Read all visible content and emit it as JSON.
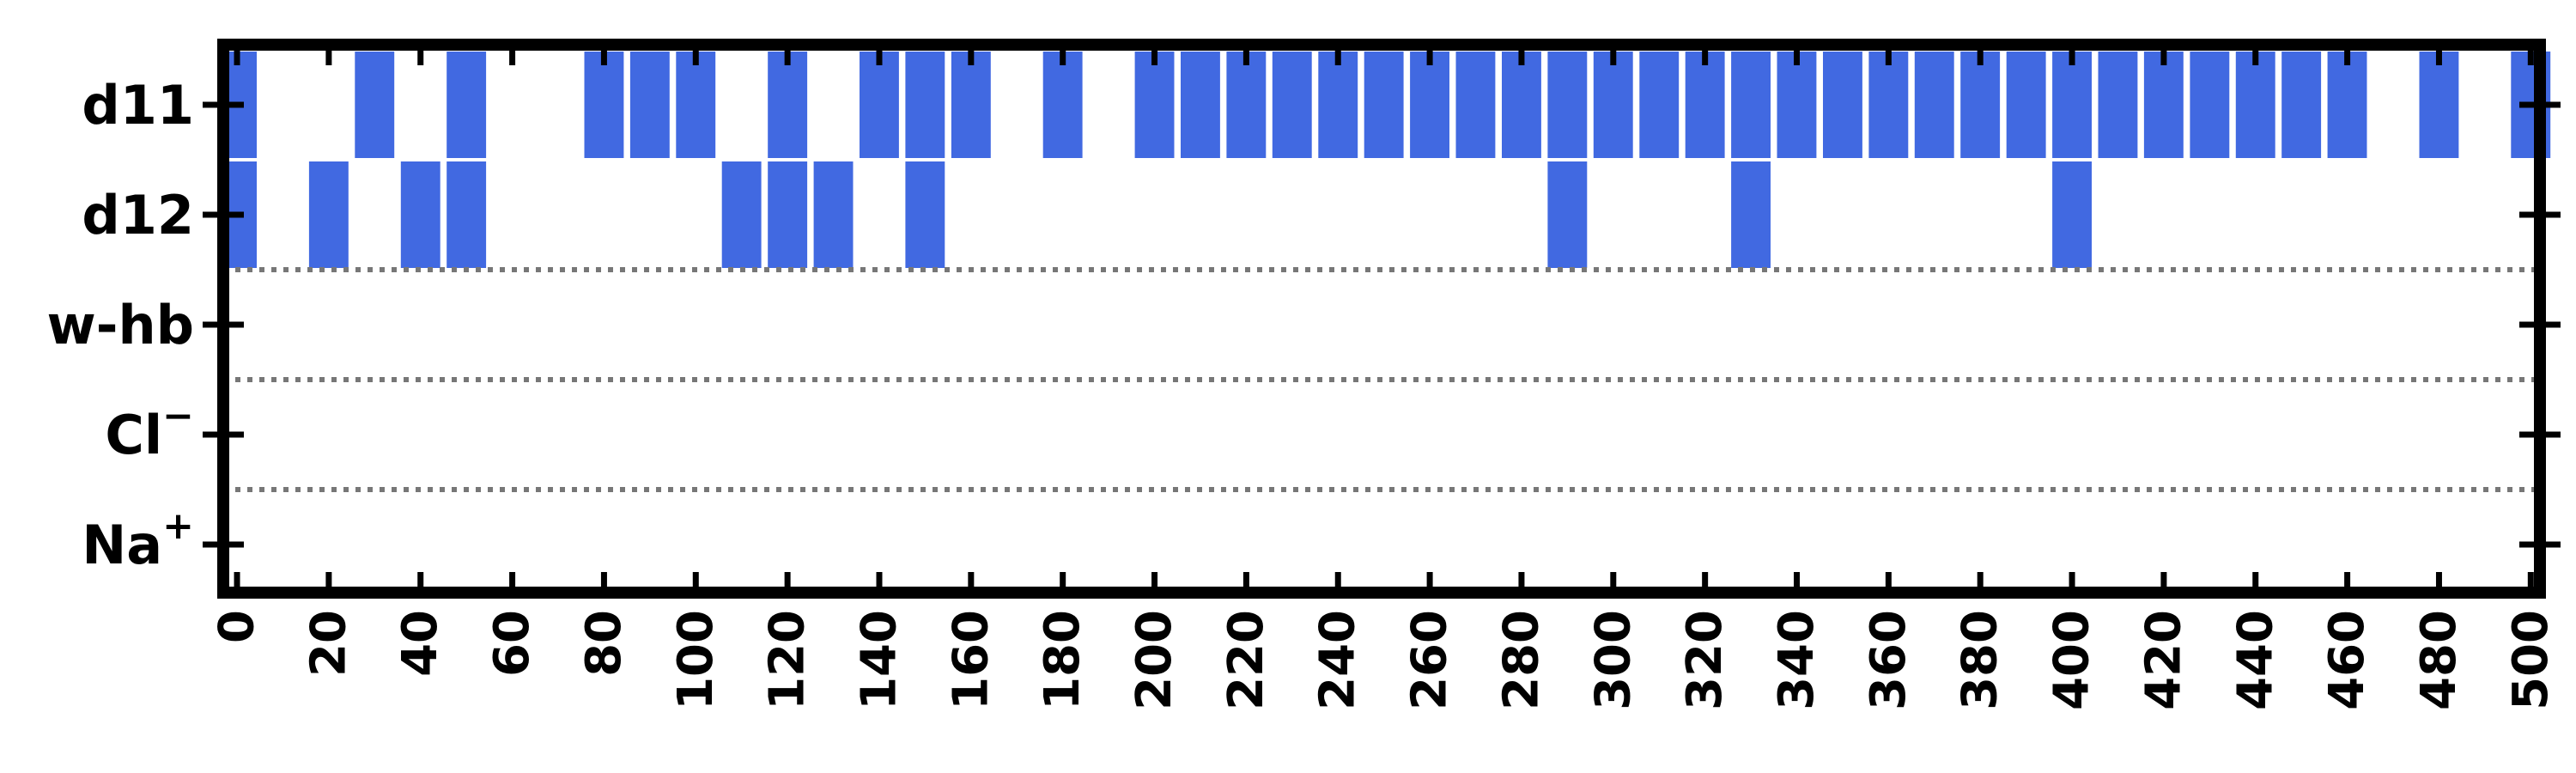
{
  "chart_data": {
    "type": "heatmap",
    "title": "",
    "xlabel": "",
    "ylabel": "",
    "xlim": [
      -3,
      502
    ],
    "x_ticks": [
      "0",
      "20",
      "40",
      "60",
      "80",
      "100",
      "120",
      "140",
      "160",
      "180",
      "200",
      "220",
      "240",
      "260",
      "280",
      "300",
      "320",
      "340",
      "360",
      "380",
      "400",
      "420",
      "440",
      "460",
      "480",
      "500"
    ],
    "rows": [
      {
        "label": "d11",
        "mid": 1,
        "active_x": [
          0,
          30,
          50,
          80,
          90,
          100,
          120,
          140,
          150,
          160,
          180,
          200,
          210,
          220,
          230,
          240,
          250,
          260,
          270,
          280,
          290,
          300,
          310,
          320,
          330,
          340,
          350,
          360,
          370,
          380,
          390,
          400,
          410,
          420,
          430,
          440,
          450,
          460,
          480,
          500
        ]
      },
      {
        "label": "d12",
        "mid": 1,
        "active_x": [
          0,
          20,
          40,
          50,
          110,
          120,
          130,
          150,
          290,
          330,
          400
        ]
      },
      {
        "label": "w-hb",
        "mid": 0,
        "active_x": []
      },
      {
        "label": "Cl",
        "mid": 0,
        "sup": "−",
        "active_x": []
      },
      {
        "label": "Na",
        "mid": 0,
        "sup": "+",
        "active_x": []
      }
    ],
    "bar_width": 8.6,
    "separators_after_rows": [
      1,
      2,
      3
    ],
    "grid": false,
    "legend": "none",
    "colors": {
      "bar": "#4169e1",
      "separator": "#777777",
      "frame": "#000000",
      "background": "#ffffff"
    }
  }
}
